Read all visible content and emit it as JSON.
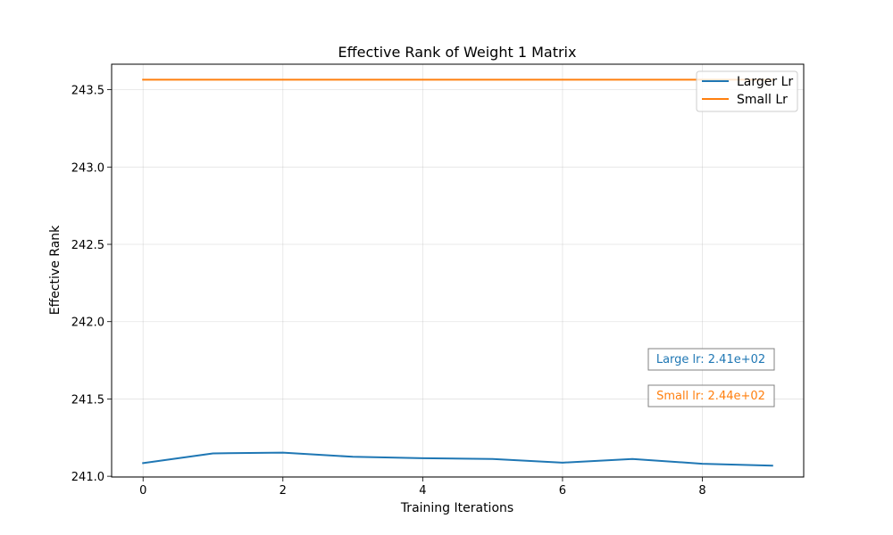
{
  "chart_data": {
    "type": "line",
    "title": "Effective Rank of Weight 1 Matrix",
    "xlabel": "Training Iterations",
    "ylabel": "Effective Rank",
    "xlim": [
      -0.45,
      9.45
    ],
    "ylim": [
      240.995,
      243.665
    ],
    "grid": true,
    "x_ticks": [
      0,
      2,
      4,
      6,
      8
    ],
    "x_tick_labels": [
      "0",
      "2",
      "4",
      "6",
      "8"
    ],
    "y_ticks": [
      241.0,
      241.5,
      242.0,
      242.5,
      243.0,
      243.5
    ],
    "y_tick_labels": [
      "241.0",
      "241.5",
      "242.0",
      "242.5",
      "243.0",
      "243.5"
    ],
    "x": [
      0,
      1,
      2,
      3,
      4,
      5,
      6,
      7,
      8,
      9
    ],
    "series": [
      {
        "name": "Larger Lr",
        "color": "#1f77b4",
        "values": [
          241.085,
          241.148,
          241.153,
          241.126,
          241.117,
          241.112,
          241.088,
          241.112,
          241.081,
          241.069
        ]
      },
      {
        "name": "Small Lr",
        "color": "#ff7f0e",
        "values": [
          243.565,
          243.565,
          243.565,
          243.565,
          243.565,
          243.565,
          243.565,
          243.565,
          243.565,
          243.565
        ]
      }
    ],
    "legend_position": "top-right",
    "annotations": [
      {
        "text": "Large lr: 2.41e+02",
        "color": "#1f77b4"
      },
      {
        "text": "Small lr: 2.44e+02",
        "color": "#ff7f0e"
      }
    ]
  }
}
